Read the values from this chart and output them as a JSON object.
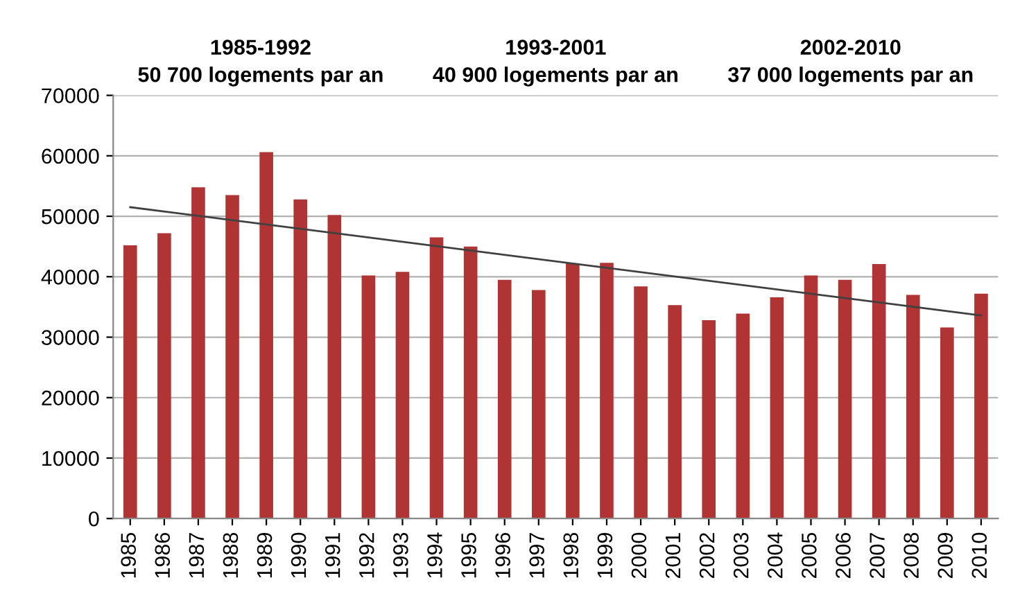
{
  "chart_data": {
    "type": "bar",
    "x": [
      1985,
      1986,
      1987,
      1988,
      1989,
      1990,
      1991,
      1992,
      1993,
      1994,
      1995,
      1996,
      1997,
      1998,
      1999,
      2000,
      2001,
      2002,
      2003,
      2004,
      2005,
      2006,
      2007,
      2008,
      2009,
      2010
    ],
    "series": [
      {
        "color": "#b03434",
        "values": [
          45200,
          47200,
          54800,
          53500,
          60600,
          52800,
          50200,
          40200,
          40800,
          46500,
          45000,
          39500,
          37800,
          42200,
          42300,
          38400,
          35300,
          32800,
          33900,
          36600,
          40200,
          39500,
          42100,
          37000,
          31600,
          37200
        ]
      },
      {
        "type": "line",
        "color": "#404040",
        "x": [
          1985,
          2010
        ],
        "values": [
          51500,
          33600
        ]
      }
    ],
    "xlim": [
      1984.5,
      2010.5
    ],
    "xticks": [
      1985,
      1986,
      1987,
      1988,
      1989,
      1990,
      1991,
      1992,
      1993,
      1994,
      1995,
      1996,
      1997,
      1998,
      1999,
      2000,
      2001,
      2002,
      2003,
      2004,
      2005,
      2006,
      2007,
      2008,
      2009,
      2010
    ],
    "ylim": [
      0,
      70000
    ],
    "yticks": [
      0,
      10000,
      20000,
      30000,
      40000,
      50000,
      60000,
      70000
    ],
    "grid": "y",
    "annotations": [
      "1985-1992\n50 700 logements par an",
      "1993-2001\n40 900 logements par an",
      "2002-2010\n37 000 logements par an"
    ]
  }
}
